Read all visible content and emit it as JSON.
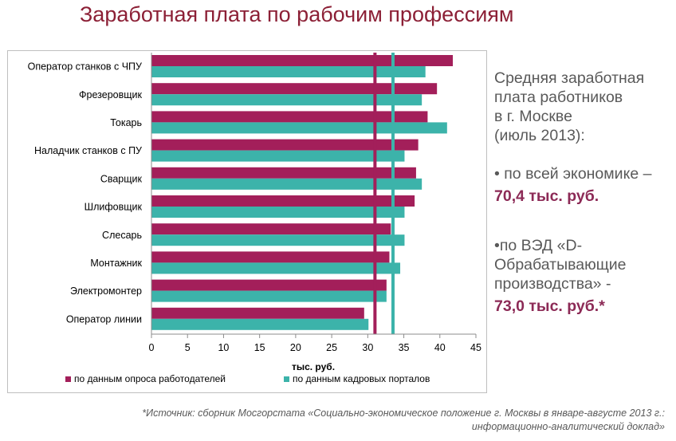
{
  "title": "Заработная плата по рабочим профессиям",
  "chart_data": {
    "type": "bar",
    "orientation": "horizontal",
    "categories": [
      "Оператор станков с ЧПУ",
      "Фрезеровщик",
      "Токарь",
      "Наладчик станков с ПУ",
      "Сварщик",
      "Шлифовщик",
      "Слесарь",
      "Монтажник",
      "Электромонтер",
      "Оператор линии"
    ],
    "series": [
      {
        "name": "по данным опроса работодателей",
        "color": "#a31f5a",
        "values": [
          41.8,
          39.6,
          38.3,
          37.0,
          36.7,
          36.5,
          33.2,
          33.0,
          32.6,
          29.5
        ]
      },
      {
        "name": "по данным кадровых порталов",
        "color": "#3cb3aa",
        "values": [
          38.0,
          37.5,
          41.0,
          35.1,
          37.5,
          35.1,
          35.1,
          34.5,
          32.6,
          30.1
        ]
      }
    ],
    "reference_lines": [
      {
        "value": 31.0,
        "color": "#a31f5a"
      },
      {
        "value": 33.5,
        "color": "#3cb3aa"
      }
    ],
    "xlabel": "тыс. руб.",
    "xlim": [
      0,
      45
    ],
    "xticks": [
      0,
      5,
      10,
      15,
      20,
      25,
      30,
      35,
      40,
      45
    ],
    "grid": false,
    "legend_position": "bottom"
  },
  "info": {
    "heading": "Средняя заработная\nплата работников\nв г. Москве\n(июль 2013):",
    "items": [
      {
        "text": "•  по всей экономике –",
        "value": "70,4 тыс. руб."
      },
      {
        "text": "•по ВЭД «D-\nОбрабатывающие\nпроизводства» -",
        "value": "73,0 тыс. руб.*"
      }
    ]
  },
  "source_note": "*Источник: сборник Мосгорстата «Социально-экономическое  положение г. Москвы в январе-августе 2013 г.:\nинформационно-аналитический доклад»"
}
